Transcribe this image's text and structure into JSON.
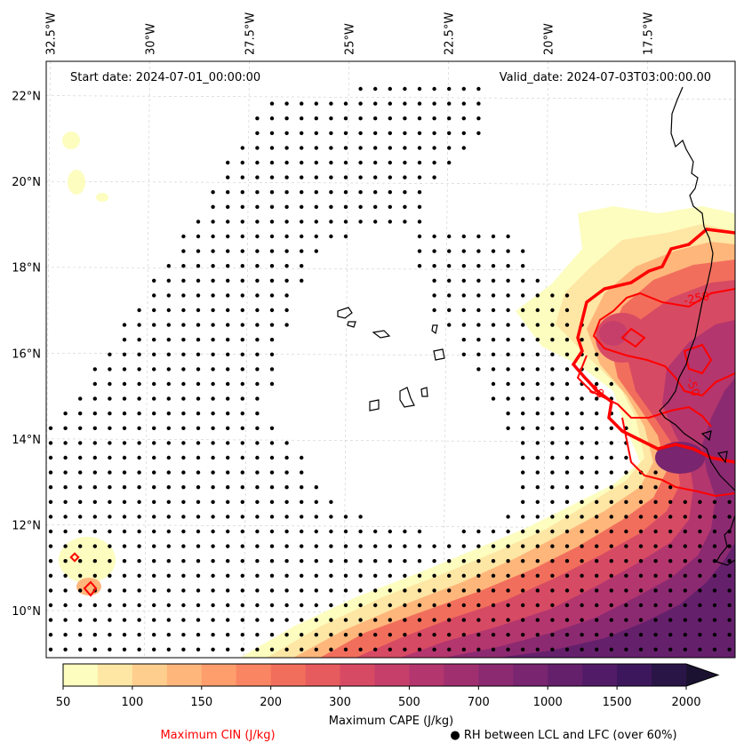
{
  "chart_data": {
    "type": "contour-map",
    "title": "",
    "start_date_label": "Start date: 2024-07-01_00:00:00",
    "valid_date_label": "Valid_date: 2024-07-03T03:00:00.00",
    "lon_ticks": [
      "32.5°W",
      "30°W",
      "27.5°W",
      "25°W",
      "22.5°W",
      "20°W",
      "17.5°W"
    ],
    "lon_values": [
      -32.5,
      -30,
      -27.5,
      -25,
      -22.5,
      -20,
      -17.5
    ],
    "lat_ticks": [
      "22°N",
      "20°N",
      "18°N",
      "16°N",
      "14°N",
      "12°N",
      "10°N"
    ],
    "lat_values": [
      22,
      20,
      18,
      16,
      14,
      12,
      10
    ],
    "lon_range": [
      -32.6,
      -15.3
    ],
    "lat_range": [
      8.9,
      22.8
    ],
    "cape": {
      "label": "Maximum CAPE (J/kg)",
      "levels": [
        50,
        75,
        100,
        125,
        150,
        175,
        200,
        250,
        300,
        400,
        500,
        600,
        700,
        800,
        1000,
        1250,
        1500,
        1750,
        2000
      ],
      "tick_labels": [
        "50",
        "100",
        "150",
        "200",
        "300",
        "500",
        "700",
        "1000",
        "1500",
        "2000"
      ],
      "tick_levels": [
        50,
        100,
        150,
        200,
        300,
        500,
        700,
        1000,
        1500,
        2000
      ],
      "colors": [
        "#fcfdbf",
        "#fee6a4",
        "#fece8e",
        "#feb67b",
        "#fd9e6c",
        "#fa8562",
        "#f26e5c",
        "#e65c5e",
        "#d74a64",
        "#c53f6a",
        "#b3366e",
        "#a02f70",
        "#8c2a71",
        "#79256f",
        "#65206c",
        "#521b67",
        "#3d175c",
        "#2a1547",
        "#1b1231"
      ],
      "extend": "max"
    },
    "cin": {
      "label": "Maximum CIN (J/kg)",
      "color": "#ff0000",
      "contour_labels": [
        "-250",
        "-50",
        "-30"
      ]
    },
    "rh": {
      "label": "● RH between LCL and LFC (over 60%)"
    }
  }
}
